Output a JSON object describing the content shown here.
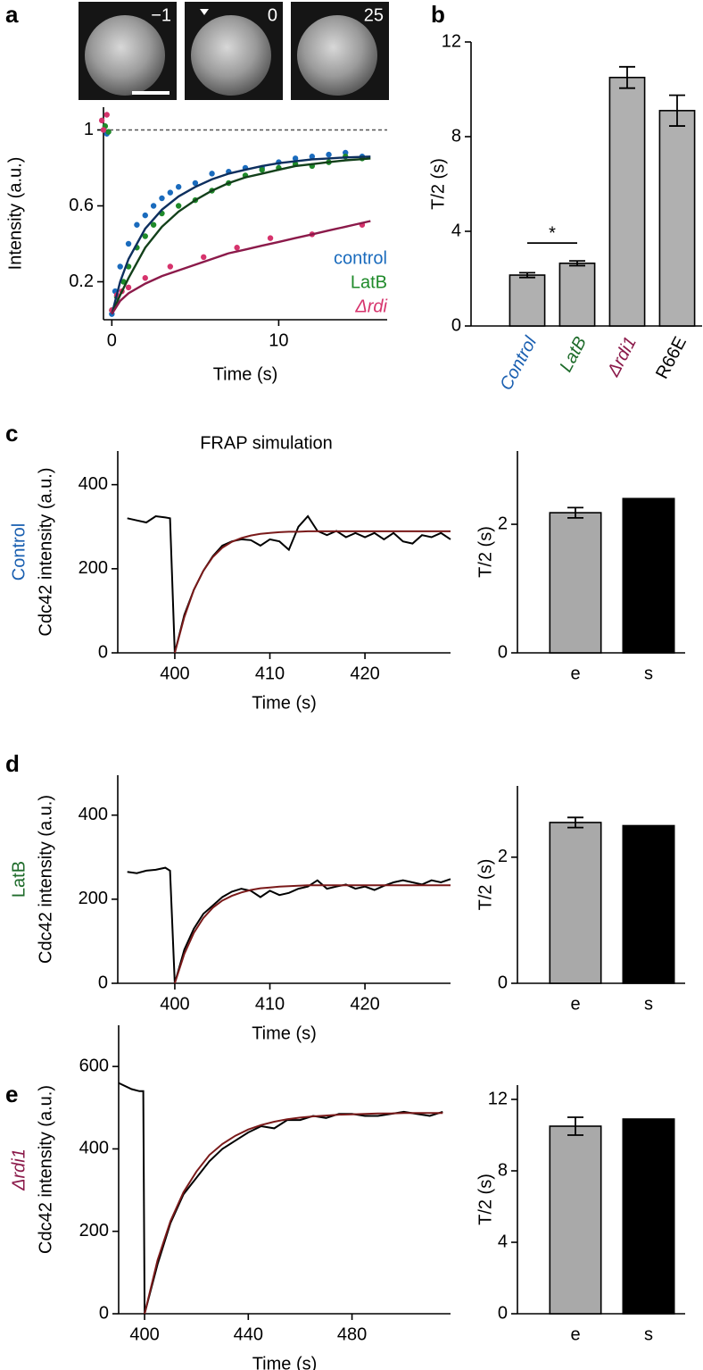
{
  "image_labels": [
    "−1",
    "0",
    "25"
  ],
  "chart_data": [
    {
      "type": "scatter",
      "panel": "a",
      "xlabel": "Time (s)",
      "ylabel": "Intensity (a.u.)",
      "xlim": [
        -0.5,
        16.5
      ],
      "ylim": [
        0,
        1.12
      ],
      "xticks": [
        0,
        10
      ],
      "yticks": [
        0.2,
        0.6,
        1
      ],
      "reference_line": 1,
      "legend": "lower right",
      "series": [
        {
          "name": "control",
          "color": "#1a6bbd",
          "italic": false,
          "x": [
            -0.5,
            -0.3,
            0,
            0.2,
            0.5,
            1,
            1.5,
            2,
            2.5,
            3,
            3.5,
            4,
            5,
            6,
            7,
            8,
            9,
            10,
            11,
            12,
            13,
            14,
            15
          ],
          "values": [
            1.0,
            0.98,
            0.03,
            0.15,
            0.28,
            0.4,
            0.5,
            0.55,
            0.6,
            0.64,
            0.67,
            0.7,
            0.72,
            0.77,
            0.78,
            0.8,
            0.8,
            0.83,
            0.85,
            0.86,
            0.87,
            0.88,
            0.86
          ]
        },
        {
          "name": "LatB",
          "color": "#1f8a2a",
          "italic": false,
          "x": [
            -0.4,
            -0.2,
            0,
            0.3,
            0.7,
            1,
            1.5,
            2,
            2.5,
            3,
            4,
            5,
            6,
            7,
            8,
            9,
            10,
            11,
            12,
            13,
            14,
            15
          ],
          "values": [
            1.02,
            0.99,
            0.05,
            0.12,
            0.2,
            0.28,
            0.38,
            0.44,
            0.5,
            0.56,
            0.6,
            0.63,
            0.68,
            0.72,
            0.76,
            0.79,
            0.8,
            0.82,
            0.81,
            0.83,
            0.86,
            0.85
          ]
        },
        {
          "name": "Δrdi",
          "color": "#d6336c",
          "italic": true,
          "x": [
            -0.6,
            -0.5,
            -0.3,
            0,
            0.3,
            0.6,
            1,
            2,
            3.5,
            5.5,
            7.5,
            9.5,
            12,
            15
          ],
          "values": [
            1.05,
            1.0,
            1.08,
            0.05,
            0.13,
            0.15,
            0.17,
            0.22,
            0.28,
            0.33,
            0.38,
            0.43,
            0.45,
            0.5
          ]
        }
      ],
      "fit_lines": [
        {
          "color": "#0d2f5e",
          "x": [
            0,
            0.5,
            1,
            2,
            3,
            4,
            5,
            6,
            7,
            8,
            9,
            10,
            11,
            12,
            13,
            14,
            15.5
          ],
          "values": [
            0.03,
            0.2,
            0.32,
            0.48,
            0.58,
            0.65,
            0.7,
            0.74,
            0.77,
            0.79,
            0.81,
            0.825,
            0.835,
            0.845,
            0.85,
            0.855,
            0.86
          ]
        },
        {
          "color": "#12401a",
          "x": [
            0,
            0.5,
            1,
            2,
            3,
            4,
            5,
            6,
            7,
            8,
            9,
            10,
            11,
            12,
            13,
            14,
            15.5
          ],
          "values": [
            0.03,
            0.13,
            0.22,
            0.38,
            0.49,
            0.57,
            0.63,
            0.68,
            0.72,
            0.75,
            0.77,
            0.79,
            0.81,
            0.82,
            0.83,
            0.84,
            0.85
          ]
        },
        {
          "color": "#8b1a4a",
          "x": [
            0,
            0.5,
            1,
            2,
            3,
            4,
            5,
            6,
            7,
            8,
            9,
            10,
            11,
            12,
            13,
            14,
            15.5
          ],
          "values": [
            0.03,
            0.1,
            0.14,
            0.19,
            0.23,
            0.26,
            0.29,
            0.32,
            0.35,
            0.37,
            0.39,
            0.41,
            0.43,
            0.45,
            0.47,
            0.49,
            0.52
          ]
        }
      ]
    },
    {
      "type": "bar",
      "panel": "b",
      "ylabel": "T/2 (s)",
      "categories": [
        "Control",
        "LatB",
        "Δrdi1",
        "R66E"
      ],
      "category_colors": [
        "#1a5fb0",
        "#1e6b2a",
        "#8b1a4a",
        "#000000"
      ],
      "category_italic": [
        true,
        true,
        true,
        false
      ],
      "values": [
        2.15,
        2.65,
        10.5,
        9.1
      ],
      "errors": [
        0.1,
        0.1,
        0.45,
        0.65
      ],
      "colors": [
        "#b0b0b0",
        "#b0b0b0",
        "#b0b0b0",
        "#b0b0b0"
      ],
      "ylim": [
        0,
        12
      ],
      "yticks": [
        0,
        4,
        8,
        12
      ],
      "significance": {
        "label": "*",
        "between": [
          0,
          1
        ]
      }
    },
    {
      "type": "line",
      "panel": "c",
      "title": "FRAP simulation",
      "row_label": "Control",
      "row_label_color": "#1a5fb0",
      "row_label_italic": false,
      "ylabel": "Cdc42 intensity (a.u.)",
      "xlabel": "Time (s)",
      "xlim": [
        394,
        429
      ],
      "ylim": [
        0,
        480
      ],
      "xticks": [
        400,
        410,
        420
      ],
      "yticks": [
        0,
        200,
        400
      ],
      "series": [
        {
          "color": "#000000",
          "x": [
            395,
            396,
            397,
            398,
            399,
            399.5,
            400,
            401,
            402,
            403,
            404,
            405,
            406,
            407,
            408,
            409,
            410,
            411,
            412,
            413,
            414,
            415,
            416,
            417,
            418,
            419,
            420,
            421,
            422,
            423,
            424,
            425,
            426,
            427,
            428,
            429
          ],
          "values": [
            320,
            315,
            310,
            325,
            322,
            320,
            0,
            90,
            150,
            195,
            230,
            255,
            265,
            270,
            268,
            255,
            270,
            265,
            245,
            300,
            325,
            290,
            280,
            290,
            275,
            285,
            275,
            285,
            270,
            285,
            265,
            260,
            280,
            275,
            285,
            270
          ]
        },
        {
          "color": "#7a1a1a",
          "x": [
            400,
            401,
            402,
            403,
            404,
            405,
            406,
            407,
            408,
            409,
            410,
            411,
            412,
            413,
            414,
            415,
            416,
            417,
            418,
            419,
            420,
            421,
            422,
            423,
            424,
            425,
            426,
            427,
            428,
            429
          ],
          "values": [
            0,
            85,
            150,
            195,
            228,
            250,
            264,
            273,
            279,
            283,
            285,
            287,
            288,
            288,
            289,
            289,
            289,
            289,
            289,
            289,
            289,
            289,
            289,
            289,
            289,
            289,
            289,
            289,
            289,
            289
          ]
        }
      ]
    },
    {
      "type": "bar",
      "ylabel": "T/2 (s)",
      "categories": [
        "e",
        "s"
      ],
      "values": [
        2.18,
        2.4
      ],
      "errors": [
        0.08,
        null
      ],
      "colors": [
        "#a9a9a9",
        "#000000"
      ],
      "ylim": [
        0,
        3.14
      ],
      "yticks": [
        0,
        2
      ]
    },
    {
      "type": "line",
      "panel": "d",
      "row_label": "LatB",
      "row_label_color": "#1e6b2a",
      "row_label_italic": false,
      "ylabel": "Cdc42 intensity (a.u.)",
      "xlabel": "Time (s)",
      "xlim": [
        394,
        429
      ],
      "ylim": [
        0,
        495
      ],
      "xticks": [
        400,
        410,
        420
      ],
      "yticks": [
        0,
        200,
        400
      ],
      "series": [
        {
          "color": "#000000",
          "x": [
            395,
            396,
            397,
            398,
            399,
            399.5,
            400,
            401,
            402,
            403,
            404,
            405,
            406,
            407,
            408,
            409,
            410,
            411,
            412,
            413,
            414,
            415,
            416,
            417,
            418,
            419,
            420,
            421,
            422,
            423,
            424,
            425,
            426,
            427,
            428,
            429
          ],
          "values": [
            265,
            262,
            268,
            270,
            275,
            268,
            0,
            80,
            130,
            165,
            185,
            205,
            218,
            225,
            220,
            205,
            220,
            210,
            215,
            225,
            230,
            245,
            225,
            230,
            235,
            225,
            230,
            222,
            232,
            240,
            245,
            240,
            235,
            245,
            240,
            248
          ]
        },
        {
          "color": "#7a1a1a",
          "x": [
            400,
            401,
            402,
            403,
            404,
            405,
            406,
            407,
            408,
            409,
            410,
            411,
            412,
            413,
            414,
            415,
            416,
            417,
            418,
            419,
            420,
            421,
            422,
            423,
            424,
            425,
            426,
            427,
            428,
            429
          ],
          "values": [
            0,
            70,
            120,
            155,
            180,
            197,
            208,
            216,
            222,
            226,
            228,
            230,
            231,
            232,
            233,
            233,
            233,
            233,
            233,
            233,
            233,
            233,
            233,
            233,
            233,
            233,
            233,
            233,
            233,
            233
          ]
        }
      ]
    },
    {
      "type": "bar",
      "ylabel": "T/2 (s)",
      "categories": [
        "e",
        "s"
      ],
      "values": [
        2.55,
        2.5
      ],
      "errors": [
        0.08,
        null
      ],
      "colors": [
        "#a9a9a9",
        "#000000"
      ],
      "ylim": [
        0,
        3.13
      ],
      "yticks": [
        0,
        2
      ]
    },
    {
      "type": "line",
      "panel": "e",
      "row_label": "Δrdi1",
      "row_label_color": "#8b1a4a",
      "row_label_italic": true,
      "ylabel": "Cdc42 intensity (a.u.)",
      "xlabel": "Time (s)",
      "xlim": [
        390,
        518
      ],
      "ylim": [
        0,
        700
      ],
      "xticks": [
        400,
        440,
        480
      ],
      "yticks": [
        0,
        200,
        400,
        600
      ],
      "series": [
        {
          "color": "#000000",
          "x": [
            390,
            395,
            398,
            399.5,
            400,
            405,
            410,
            415,
            420,
            425,
            430,
            435,
            440,
            445,
            450,
            455,
            460,
            465,
            470,
            475,
            480,
            485,
            490,
            495,
            500,
            505,
            510,
            515
          ],
          "values": [
            560,
            545,
            540,
            540,
            0,
            120,
            220,
            290,
            330,
            370,
            400,
            420,
            440,
            455,
            450,
            470,
            470,
            480,
            475,
            485,
            485,
            480,
            480,
            485,
            490,
            485,
            480,
            490
          ]
        },
        {
          "color": "#7a1a1a",
          "x": [
            400,
            405,
            410,
            415,
            420,
            425,
            430,
            435,
            440,
            445,
            450,
            455,
            460,
            465,
            470,
            475,
            480,
            485,
            490,
            495,
            500,
            505,
            510,
            515
          ],
          "values": [
            0,
            130,
            225,
            295,
            345,
            385,
            412,
            432,
            447,
            458,
            466,
            472,
            476,
            479,
            481,
            483,
            484,
            485,
            486,
            486,
            487,
            487,
            487,
            487
          ]
        }
      ]
    },
    {
      "type": "bar",
      "ylabel": "T/2 (s)",
      "categories": [
        "e",
        "s"
      ],
      "values": [
        10.5,
        10.9
      ],
      "errors": [
        0.5,
        null
      ],
      "colors": [
        "#a9a9a9",
        "#000000"
      ],
      "ylim": [
        0,
        12.8
      ],
      "yticks": [
        0,
        4,
        8,
        12
      ]
    }
  ]
}
